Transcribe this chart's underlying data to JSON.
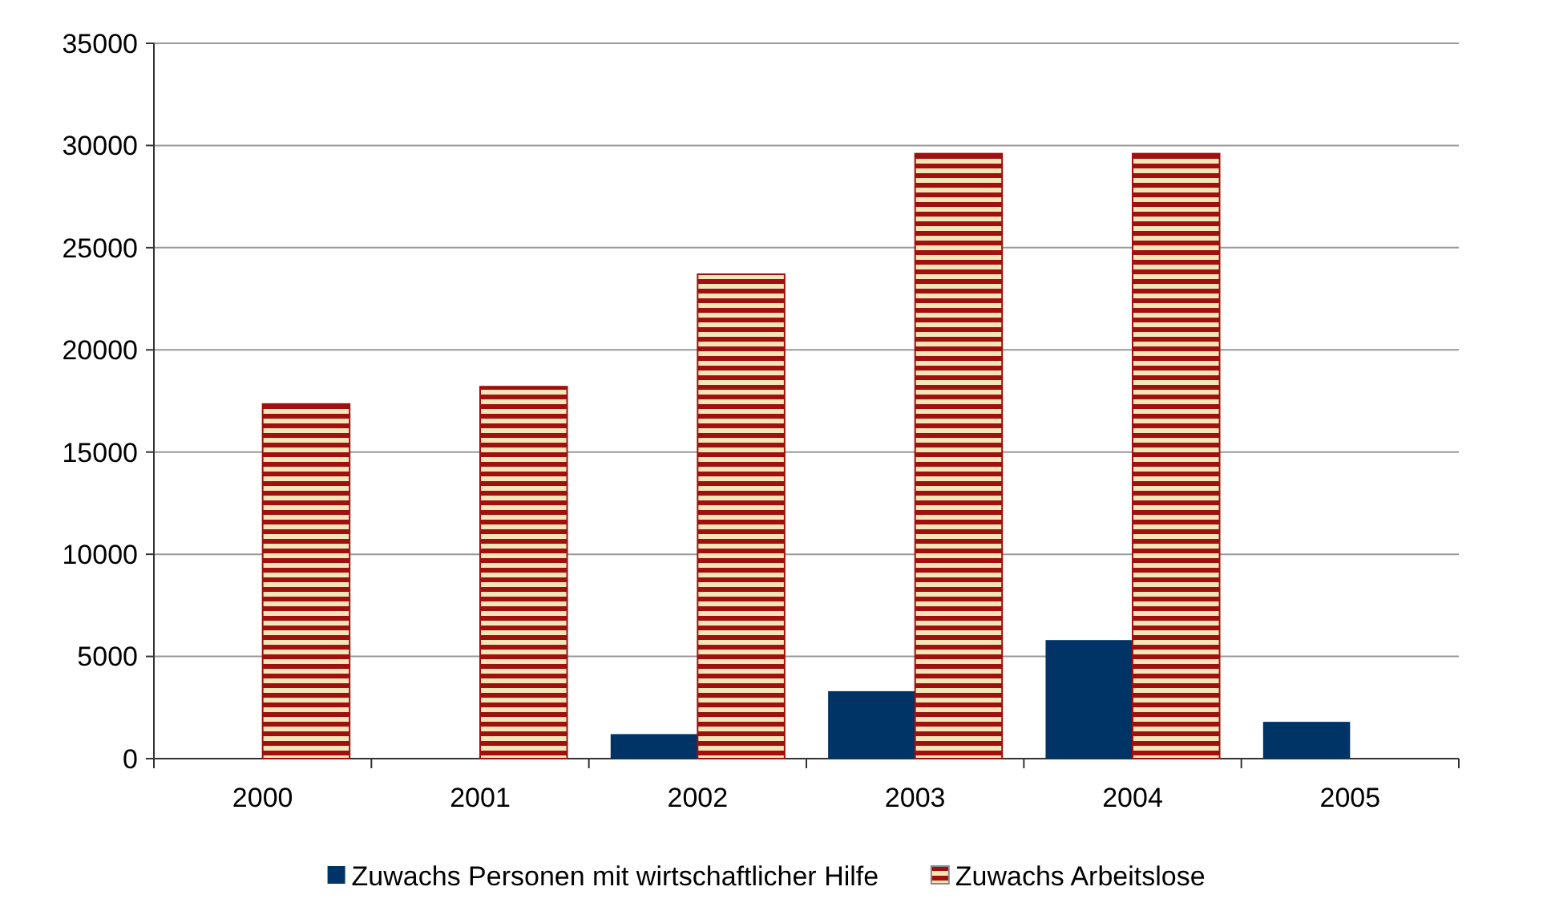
{
  "chart_data": {
    "type": "bar",
    "categories": [
      "2000",
      "2001",
      "2002",
      "2003",
      "2004",
      "2005"
    ],
    "series": [
      {
        "name": "Zuwachs Personen mit wirtschaftlicher Hilfe",
        "color": "#003366",
        "values": [
          0,
          0,
          1200,
          3300,
          5800,
          1800
        ]
      },
      {
        "name": "Zuwachs Arbeitslose",
        "color": "#a01010",
        "values": [
          17350,
          18200,
          23700,
          29600,
          29600,
          null
        ]
      }
    ],
    "ylim": [
      0,
      35000
    ],
    "yticks": [
      0,
      5000,
      10000,
      15000,
      20000,
      25000,
      30000,
      35000
    ],
    "grid": "y",
    "legend": "bottom"
  }
}
